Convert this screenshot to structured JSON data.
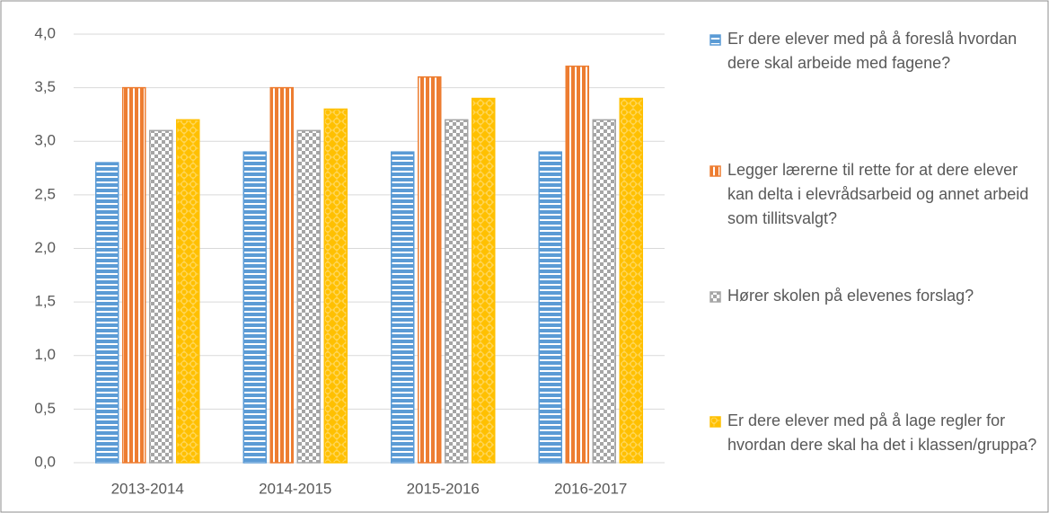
{
  "chart_data": {
    "type": "bar",
    "categories": [
      "2013-2014",
      "2014-2015",
      "2015-2016",
      "2016-2017"
    ],
    "series": [
      {
        "name": "Er dere elever med på å foreslå hvordan dere skal arbeide med fagene?",
        "color": "#5b9bd5",
        "values": [
          2.8,
          2.9,
          2.9,
          2.9
        ]
      },
      {
        "name": "Legger lærerne til rette for at dere elever kan delta i elevrådsarbeid og annet arbeid som tillitsvalgt?",
        "color": "#ed7d31",
        "values": [
          3.5,
          3.5,
          3.6,
          3.7
        ]
      },
      {
        "name": "Hører skolen på elevenes forslag?",
        "color": "#a5a5a5",
        "values": [
          3.1,
          3.1,
          3.2,
          3.2
        ]
      },
      {
        "name": "Er dere elever med på å lage regler for hvordan dere skal ha det i klassen/gruppa?",
        "color": "#ffc000",
        "values": [
          3.2,
          3.3,
          3.4,
          3.4
        ]
      }
    ],
    "ylim": [
      0,
      4
    ],
    "yticks": [
      {
        "value": 0,
        "label": "0,0"
      },
      {
        "value": 0.5,
        "label": "0,5"
      },
      {
        "value": 1,
        "label": "1,0"
      },
      {
        "value": 1.5,
        "label": "1,5"
      },
      {
        "value": 2,
        "label": "2,0"
      },
      {
        "value": 2.5,
        "label": "2,5"
      },
      {
        "value": 3,
        "label": "3,0"
      },
      {
        "value": 3.5,
        "label": "3,5"
      },
      {
        "value": 4,
        "label": "4,0"
      }
    ],
    "grid": true,
    "legend": "right"
  }
}
